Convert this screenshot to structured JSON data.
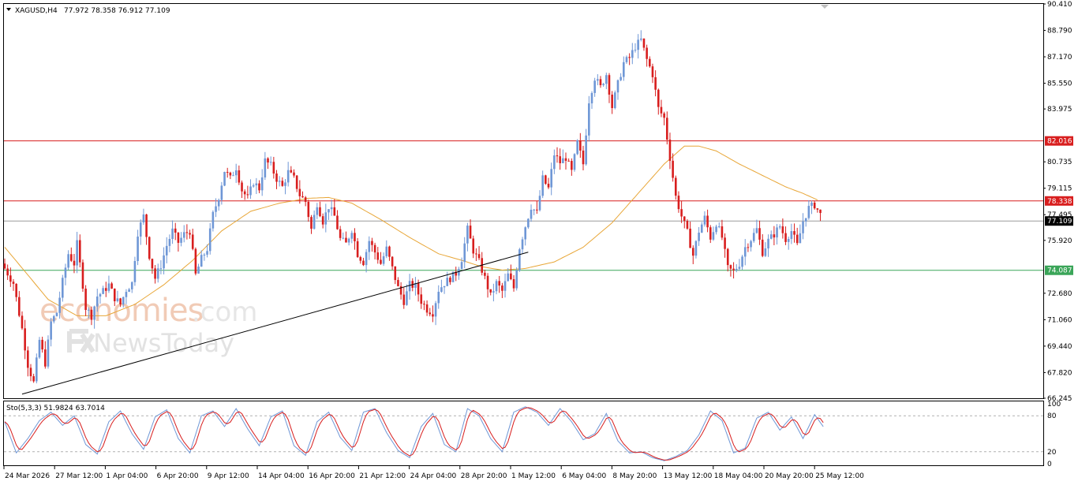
{
  "header": {
    "symbol_timeframe": "XAGUSD,H4",
    "ohlc": "77.972 78.358 76.912 77.109"
  },
  "indicator": {
    "label": "Sto(5,3,3) 51.9824 63.7014",
    "levels": [
      "100",
      "80",
      "20",
      "0"
    ]
  },
  "watermark": {
    "brand_main": "economies",
    "brand_suffix": ".com",
    "brand_sub": "NewsToday"
  },
  "colors": {
    "bull": "#6f97d6",
    "bear": "#d81e1e",
    "ma": "#e8a637",
    "resistance": "#d81e1e",
    "support": "#3aa558",
    "trendline": "#000000",
    "current_price": "#000000",
    "stoch_main": "#6f97d6",
    "stoch_signal": "#d81e1e"
  },
  "chart_data": {
    "type": "candlestick",
    "symbol": "XAGUSD",
    "timeframe": "H4",
    "y_ticks": [
      "90.410",
      "88.790",
      "87.170",
      "85.550",
      "83.975",
      "80.735",
      "79.115",
      "77.495",
      "75.920",
      "72.680",
      "71.060",
      "69.440",
      "67.820",
      "66.245"
    ],
    "ylim": [
      66.245,
      90.41
    ],
    "x_ticks": [
      "24 Mar 2026",
      "27 Mar 12:00",
      "1 Apr 04:00",
      "6 Apr 20:00",
      "9 Apr 12:00",
      "14 Apr 04:00",
      "16 Apr 20:00",
      "21 Apr 12:00",
      "24 Apr 04:00",
      "28 Apr 20:00",
      "1 May 12:00",
      "6 May 04:00",
      "8 May 20:00",
      "13 May 12:00",
      "18 May 04:00",
      "20 May 20:00",
      "25 May 12:00"
    ],
    "price_labels": [
      {
        "value": "82.016",
        "kind": "resistance"
      },
      {
        "value": "78.338",
        "kind": "resistance"
      },
      {
        "value": "77.109",
        "kind": "current"
      },
      {
        "value": "74.087",
        "kind": "support"
      }
    ],
    "horizontal_lines": [
      {
        "price": 82.016,
        "kind": "resistance"
      },
      {
        "price": 78.338,
        "kind": "resistance"
      },
      {
        "price": 77.109,
        "kind": "current"
      },
      {
        "price": 74.087,
        "kind": "support"
      }
    ],
    "trendline": {
      "from": {
        "bar": 6,
        "price": 66.5
      },
      "to": {
        "bar": 181,
        "price": 75.2
      }
    },
    "close_path": [
      [
        0,
        74.2
      ],
      [
        3,
        73.3
      ],
      [
        6,
        70.5
      ],
      [
        8,
        68.3
      ],
      [
        10,
        67.2
      ],
      [
        12,
        69.8
      ],
      [
        14,
        68.4
      ],
      [
        16,
        70.9
      ],
      [
        18,
        71.5
      ],
      [
        20,
        73.4
      ],
      [
        22,
        75.1
      ],
      [
        24,
        74.5
      ],
      [
        25,
        75.7
      ],
      [
        27,
        73.2
      ],
      [
        28,
        71.8
      ],
      [
        30,
        71.3
      ],
      [
        32,
        72.5
      ],
      [
        34,
        72.8
      ],
      [
        36,
        73.2
      ],
      [
        38,
        72.4
      ],
      [
        40,
        72.0
      ],
      [
        42,
        72.9
      ],
      [
        44,
        73.3
      ],
      [
        46,
        76.4
      ],
      [
        48,
        77.4
      ],
      [
        50,
        75.0
      ],
      [
        52,
        73.6
      ],
      [
        54,
        74.4
      ],
      [
        56,
        75.6
      ],
      [
        58,
        76.5
      ],
      [
        60,
        75.8
      ],
      [
        62,
        76.3
      ],
      [
        64,
        76.5
      ],
      [
        66,
        73.8
      ],
      [
        68,
        74.8
      ],
      [
        70,
        75.4
      ],
      [
        72,
        77.5
      ],
      [
        74,
        78.6
      ],
      [
        76,
        80.2
      ],
      [
        78,
        79.7
      ],
      [
        80,
        80.4
      ],
      [
        82,
        79.0
      ],
      [
        84,
        78.5
      ],
      [
        86,
        79.5
      ],
      [
        88,
        79.1
      ],
      [
        90,
        80.8
      ],
      [
        92,
        80.5
      ],
      [
        94,
        79.7
      ],
      [
        96,
        79.2
      ],
      [
        98,
        80.1
      ],
      [
        100,
        79.7
      ],
      [
        102,
        78.7
      ],
      [
        104,
        78.3
      ],
      [
        106,
        76.6
      ],
      [
        108,
        78.2
      ],
      [
        110,
        77.1
      ],
      [
        112,
        78.0
      ],
      [
        114,
        77.4
      ],
      [
        116,
        76.0
      ],
      [
        118,
        75.7
      ],
      [
        120,
        76.6
      ],
      [
        122,
        75.1
      ],
      [
        124,
        74.6
      ],
      [
        126,
        75.9
      ],
      [
        128,
        75.2
      ],
      [
        130,
        74.5
      ],
      [
        132,
        75.4
      ],
      [
        134,
        74.2
      ],
      [
        136,
        73.0
      ],
      [
        138,
        72.2
      ],
      [
        140,
        73.2
      ],
      [
        142,
        73.1
      ],
      [
        144,
        72.2
      ],
      [
        146,
        71.7
      ],
      [
        148,
        71.5
      ],
      [
        150,
        72.9
      ],
      [
        152,
        73.3
      ],
      [
        154,
        73.6
      ],
      [
        156,
        73.9
      ],
      [
        158,
        74.8
      ],
      [
        160,
        76.6
      ],
      [
        162,
        75.3
      ],
      [
        164,
        74.6
      ],
      [
        166,
        73.6
      ],
      [
        168,
        72.5
      ],
      [
        170,
        73.3
      ],
      [
        172,
        72.8
      ],
      [
        174,
        73.8
      ],
      [
        176,
        73.0
      ],
      [
        178,
        75.5
      ],
      [
        180,
        76.8
      ],
      [
        182,
        78.0
      ],
      [
        184,
        77.6
      ],
      [
        186,
        79.7
      ],
      [
        188,
        79.1
      ],
      [
        190,
        81.2
      ],
      [
        192,
        80.7
      ],
      [
        194,
        81.0
      ],
      [
        196,
        80.1
      ],
      [
        198,
        81.9
      ],
      [
        200,
        80.6
      ],
      [
        202,
        84.5
      ],
      [
        204,
        85.9
      ],
      [
        206,
        85.3
      ],
      [
        208,
        86.1
      ],
      [
        210,
        84.1
      ],
      [
        212,
        85.5
      ],
      [
        214,
        86.8
      ],
      [
        216,
        87.1
      ],
      [
        218,
        87.8
      ],
      [
        220,
        88.2
      ],
      [
        222,
        87.0
      ],
      [
        224,
        86.1
      ],
      [
        226,
        84.0
      ],
      [
        228,
        83.4
      ],
      [
        230,
        81.0
      ],
      [
        232,
        78.6
      ],
      [
        234,
        77.4
      ],
      [
        236,
        76.4
      ],
      [
        238,
        75.0
      ],
      [
        240,
        76.5
      ],
      [
        242,
        77.3
      ],
      [
        244,
        76.1
      ],
      [
        246,
        77.0
      ],
      [
        248,
        76.1
      ],
      [
        250,
        74.2
      ],
      [
        252,
        74.0
      ],
      [
        254,
        74.5
      ],
      [
        256,
        75.5
      ],
      [
        258,
        76.0
      ],
      [
        260,
        76.6
      ],
      [
        262,
        75.2
      ],
      [
        264,
        75.9
      ],
      [
        266,
        76.3
      ],
      [
        268,
        76.8
      ],
      [
        270,
        76.0
      ],
      [
        272,
        76.5
      ],
      [
        274,
        75.6
      ],
      [
        276,
        77.1
      ],
      [
        278,
        77.9
      ],
      [
        280,
        78.1
      ],
      [
        282,
        77.5
      ],
      [
        283,
        77.109
      ]
    ],
    "ma_path": [
      [
        0,
        75.5
      ],
      [
        8,
        73.8
      ],
      [
        15,
        72.3
      ],
      [
        25,
        71.3
      ],
      [
        35,
        71.3
      ],
      [
        45,
        72.0
      ],
      [
        55,
        73.2
      ],
      [
        65,
        74.7
      ],
      [
        75,
        76.5
      ],
      [
        85,
        77.7
      ],
      [
        95,
        78.2
      ],
      [
        105,
        78.5
      ],
      [
        112,
        78.55
      ],
      [
        120,
        78.2
      ],
      [
        130,
        77.2
      ],
      [
        140,
        76.1
      ],
      [
        150,
        75.1
      ],
      [
        158,
        74.7
      ],
      [
        165,
        74.3
      ],
      [
        172,
        74.1
      ],
      [
        180,
        74.2
      ],
      [
        190,
        74.6
      ],
      [
        200,
        75.5
      ],
      [
        210,
        77.0
      ],
      [
        220,
        79.0
      ],
      [
        228,
        80.6
      ],
      [
        235,
        81.7
      ],
      [
        240,
        81.7
      ],
      [
        246,
        81.4
      ],
      [
        254,
        80.6
      ],
      [
        262,
        79.9
      ],
      [
        270,
        79.2
      ],
      [
        276,
        78.8
      ],
      [
        281,
        78.4
      ]
    ],
    "stoch_path": [
      [
        0,
        70
      ],
      [
        4,
        18
      ],
      [
        8,
        42
      ],
      [
        12,
        72
      ],
      [
        16,
        86
      ],
      [
        20,
        64
      ],
      [
        24,
        80
      ],
      [
        28,
        32
      ],
      [
        32,
        16
      ],
      [
        36,
        70
      ],
      [
        40,
        88
      ],
      [
        44,
        50
      ],
      [
        48,
        24
      ],
      [
        52,
        78
      ],
      [
        56,
        90
      ],
      [
        60,
        42
      ],
      [
        64,
        18
      ],
      [
        68,
        80
      ],
      [
        72,
        88
      ],
      [
        76,
        62
      ],
      [
        80,
        92
      ],
      [
        84,
        58
      ],
      [
        88,
        30
      ],
      [
        92,
        78
      ],
      [
        96,
        88
      ],
      [
        100,
        30
      ],
      [
        104,
        14
      ],
      [
        108,
        70
      ],
      [
        112,
        86
      ],
      [
        116,
        44
      ],
      [
        120,
        22
      ],
      [
        124,
        86
      ],
      [
        128,
        92
      ],
      [
        132,
        52
      ],
      [
        136,
        22
      ],
      [
        140,
        10
      ],
      [
        144,
        62
      ],
      [
        148,
        84
      ],
      [
        152,
        32
      ],
      [
        156,
        20
      ],
      [
        160,
        92
      ],
      [
        164,
        80
      ],
      [
        168,
        42
      ],
      [
        172,
        20
      ],
      [
        176,
        86
      ],
      [
        180,
        95
      ],
      [
        184,
        86
      ],
      [
        188,
        64
      ],
      [
        192,
        92
      ],
      [
        196,
        70
      ],
      [
        200,
        40
      ],
      [
        204,
        50
      ],
      [
        208,
        84
      ],
      [
        212,
        38
      ],
      [
        216,
        18
      ],
      [
        220,
        20
      ],
      [
        224,
        10
      ],
      [
        228,
        5
      ],
      [
        232,
        12
      ],
      [
        236,
        22
      ],
      [
        240,
        48
      ],
      [
        244,
        88
      ],
      [
        248,
        72
      ],
      [
        252,
        18
      ],
      [
        256,
        26
      ],
      [
        260,
        76
      ],
      [
        264,
        86
      ],
      [
        268,
        56
      ],
      [
        272,
        78
      ],
      [
        276,
        42
      ],
      [
        280,
        82
      ],
      [
        283,
        62
      ]
    ]
  }
}
